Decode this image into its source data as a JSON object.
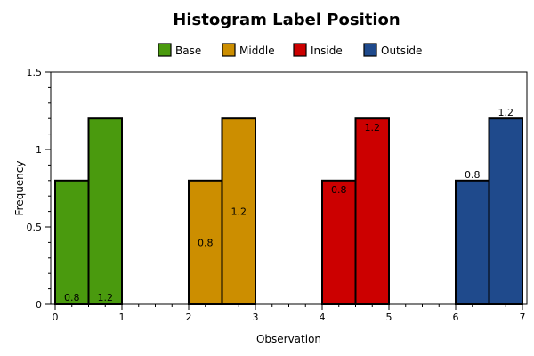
{
  "chart_data": {
    "type": "bar",
    "title": "Histogram Label Position",
    "xlabel": "Observation",
    "ylabel": "Frequency",
    "xlim": [
      0,
      7
    ],
    "ylim": [
      0,
      1.5
    ],
    "x_ticks": [
      0,
      1,
      2,
      3,
      4,
      5,
      6,
      7
    ],
    "x_tick_labels": [
      "0",
      "1",
      "2",
      "3",
      "4",
      "5",
      "6",
      "7"
    ],
    "y_ticks": [
      0,
      0.5,
      1,
      1.5
    ],
    "y_tick_labels": [
      "0",
      "0.5",
      "1",
      "1.5"
    ],
    "grid": false,
    "legend": "top",
    "series": [
      {
        "name": "Base",
        "color": "#4a9a0e",
        "label_position": "base",
        "bins": [
          {
            "start": 0,
            "end": 0.5,
            "value": 0.8,
            "label": "0.8"
          },
          {
            "start": 0.5,
            "end": 1,
            "value": 1.2,
            "label": "1.2"
          }
        ]
      },
      {
        "name": "Middle",
        "color": "#cc8e00",
        "label_position": "middle",
        "bins": [
          {
            "start": 2,
            "end": 2.5,
            "value": 0.8,
            "label": "0.8"
          },
          {
            "start": 2.5,
            "end": 3,
            "value": 1.2,
            "label": "1.2"
          }
        ]
      },
      {
        "name": "Inside",
        "color": "#cc0000",
        "label_position": "inside",
        "bins": [
          {
            "start": 4,
            "end": 4.5,
            "value": 0.8,
            "label": "0.8"
          },
          {
            "start": 4.5,
            "end": 5,
            "value": 1.2,
            "label": "1.2"
          }
        ]
      },
      {
        "name": "Outside",
        "color": "#1f4a8c",
        "label_position": "outside",
        "bins": [
          {
            "start": 6,
            "end": 6.5,
            "value": 0.8,
            "label": "0.8"
          },
          {
            "start": 6.5,
            "end": 7,
            "value": 1.2,
            "label": "1.2"
          }
        ]
      }
    ]
  }
}
